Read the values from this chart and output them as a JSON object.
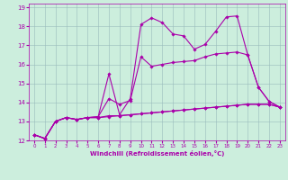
{
  "xlabel": "Windchill (Refroidissement éolien,°C)",
  "bg_color": "#cceedd",
  "line_color": "#aa00aa",
  "xlim": [
    -0.5,
    23.5
  ],
  "ylim": [
    12,
    19.2
  ],
  "xticks": [
    0,
    1,
    2,
    3,
    4,
    5,
    6,
    7,
    8,
    9,
    10,
    11,
    12,
    13,
    14,
    15,
    16,
    17,
    18,
    19,
    20,
    21,
    22,
    23
  ],
  "yticks": [
    12,
    13,
    14,
    15,
    16,
    17,
    18,
    19
  ],
  "line1_y": [
    12.3,
    12.1,
    13.0,
    13.2,
    13.1,
    13.2,
    13.2,
    13.25,
    13.3,
    13.35,
    13.4,
    13.45,
    13.5,
    13.55,
    13.6,
    13.65,
    13.7,
    13.75,
    13.8,
    13.85,
    13.9,
    13.9,
    13.9,
    13.75
  ],
  "line2_y": [
    12.3,
    12.1,
    13.0,
    13.2,
    13.1,
    13.2,
    13.2,
    13.3,
    13.3,
    13.35,
    13.4,
    13.45,
    13.5,
    13.55,
    13.6,
    13.65,
    13.7,
    13.75,
    13.8,
    13.85,
    13.9,
    13.9,
    13.9,
    13.75
  ],
  "line3_y": [
    12.3,
    12.1,
    13.0,
    13.2,
    13.1,
    13.2,
    13.25,
    14.2,
    13.9,
    14.1,
    16.4,
    15.9,
    16.0,
    16.1,
    16.15,
    16.2,
    16.4,
    16.55,
    16.6,
    16.65,
    16.5,
    14.8,
    14.05,
    13.75
  ],
  "line4_y": [
    12.3,
    12.1,
    13.0,
    13.2,
    13.1,
    13.2,
    13.25,
    15.5,
    13.35,
    14.2,
    18.1,
    18.45,
    18.2,
    17.6,
    17.5,
    16.8,
    17.05,
    17.75,
    18.5,
    18.55,
    16.5,
    14.8,
    14.05,
    13.75
  ]
}
